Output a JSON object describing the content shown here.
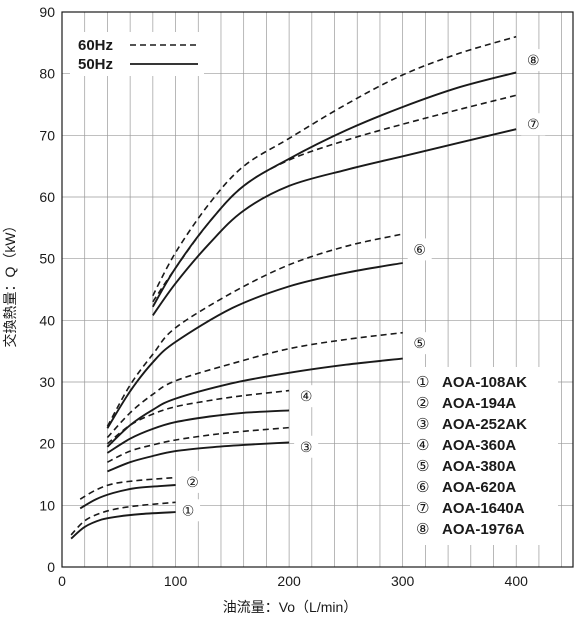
{
  "chart_data": {
    "type": "line",
    "title": "",
    "xlabel": "油流量：Vo（L/min）",
    "ylabel": "交換熱量：Q（kW）",
    "xlim": [
      0,
      450
    ],
    "ylim": [
      0,
      90
    ],
    "x_ticks": [
      "0",
      "100",
      "200",
      "300",
      "400"
    ],
    "y_ticks": [
      "0",
      "10",
      "20",
      "30",
      "40",
      "50",
      "60",
      "70",
      "80",
      "90"
    ],
    "grid": true,
    "legend_position": "top-left",
    "line_styles": [
      {
        "name": "60Hz",
        "style": "dashed"
      },
      {
        "name": "50Hz",
        "style": "solid"
      }
    ],
    "models": [
      {
        "marker": "①",
        "name": "AOA-108AK"
      },
      {
        "marker": "②",
        "name": "AOA-194A"
      },
      {
        "marker": "③",
        "name": "AOA-252AK"
      },
      {
        "marker": "④",
        "name": "AOA-360A"
      },
      {
        "marker": "⑤",
        "name": "AOA-380A"
      },
      {
        "marker": "⑥",
        "name": "AOA-620A"
      },
      {
        "marker": "⑦",
        "name": "AOA-1640A"
      },
      {
        "marker": "⑧",
        "name": "AOA-1976A"
      }
    ],
    "series": [
      {
        "model": "①",
        "freq": "50Hz",
        "x": [
          8,
          20,
          35,
          50,
          70,
          100
        ],
        "y": [
          4.6,
          6.5,
          7.7,
          8.2,
          8.6,
          8.9
        ]
      },
      {
        "model": "①",
        "freq": "60Hz",
        "x": [
          8,
          20,
          35,
          50,
          70,
          100
        ],
        "y": [
          5.2,
          7.5,
          8.8,
          9.5,
          10.0,
          10.5
        ]
      },
      {
        "model": "②",
        "freq": "50Hz",
        "x": [
          16,
          30,
          45,
          65,
          85,
          100
        ],
        "y": [
          9.5,
          11.0,
          12.0,
          12.8,
          13.1,
          13.3
        ]
      },
      {
        "model": "②",
        "freq": "60Hz",
        "x": [
          16,
          30,
          45,
          65,
          85,
          100
        ],
        "y": [
          11.0,
          12.5,
          13.5,
          14.0,
          14.3,
          14.5
        ]
      },
      {
        "model": "③",
        "freq": "50Hz",
        "x": [
          40,
          60,
          80,
          100,
          130,
          160,
          200
        ],
        "y": [
          15.5,
          17.0,
          18.0,
          18.8,
          19.4,
          19.8,
          20.2
        ]
      },
      {
        "model": "③",
        "freq": "60Hz",
        "x": [
          40,
          60,
          80,
          100,
          130,
          160,
          200
        ],
        "y": [
          17.0,
          18.8,
          19.8,
          20.6,
          21.4,
          22.0,
          22.6
        ]
      },
      {
        "model": "④",
        "freq": "50Hz",
        "x": [
          40,
          60,
          80,
          100,
          130,
          160,
          200
        ],
        "y": [
          18.5,
          20.8,
          22.4,
          23.5,
          24.4,
          25.0,
          25.4
        ]
      },
      {
        "model": "④",
        "freq": "60Hz",
        "x": [
          40,
          60,
          80,
          100,
          130,
          160,
          200
        ],
        "y": [
          20.0,
          23.0,
          24.8,
          26.0,
          27.0,
          27.8,
          28.6
        ]
      },
      {
        "model": "⑤",
        "freq": "50Hz",
        "x": [
          40,
          60,
          80,
          100,
          150,
          200,
          250,
          300
        ],
        "y": [
          19.5,
          23.0,
          25.5,
          27.3,
          29.8,
          31.5,
          32.8,
          33.8
        ]
      },
      {
        "model": "⑤",
        "freq": "60Hz",
        "x": [
          40,
          60,
          80,
          100,
          150,
          200,
          250,
          300
        ],
        "y": [
          21.0,
          25.0,
          28.0,
          30.2,
          33.0,
          35.4,
          36.9,
          38.0
        ]
      },
      {
        "model": "⑥",
        "freq": "50Hz",
        "x": [
          40,
          60,
          80,
          100,
          150,
          200,
          250,
          300
        ],
        "y": [
          22.5,
          28.5,
          33.2,
          36.5,
          42.0,
          45.5,
          47.7,
          49.3
        ]
      },
      {
        "model": "⑥",
        "freq": "60Hz",
        "x": [
          40,
          60,
          80,
          100,
          150,
          200,
          250,
          300
        ],
        "y": [
          22.8,
          29.5,
          34.5,
          38.8,
          44.5,
          49.0,
          52.0,
          54.0
        ]
      },
      {
        "model": "⑦",
        "freq": "50Hz",
        "x": [
          80,
          100,
          130,
          160,
          200,
          250,
          300,
          350,
          400
        ],
        "y": [
          40.8,
          46.0,
          52.5,
          57.8,
          61.8,
          64.4,
          66.6,
          68.8,
          71.0
        ]
      },
      {
        "model": "⑦",
        "freq": "60Hz",
        "x": [
          80,
          100,
          130,
          160,
          200,
          250,
          300,
          350,
          400
        ],
        "y": [
          43.0,
          48.5,
          56.0,
          61.8,
          66.0,
          69.2,
          71.8,
          74.2,
          76.5
        ]
      },
      {
        "model": "⑧",
        "freq": "50Hz",
        "x": [
          80,
          100,
          130,
          160,
          200,
          250,
          300,
          350,
          400
        ],
        "y": [
          42.2,
          48.5,
          56.0,
          61.8,
          66.2,
          70.8,
          74.6,
          77.8,
          80.2
        ]
      },
      {
        "model": "⑧",
        "freq": "60Hz",
        "x": [
          80,
          100,
          130,
          160,
          200,
          250,
          300,
          350,
          400
        ],
        "y": [
          44.0,
          51.0,
          59.0,
          65.0,
          69.5,
          75.0,
          79.8,
          83.3,
          86.0
        ]
      }
    ],
    "curve_markers": [
      {
        "marker": "①",
        "x": 111,
        "y": 9.2
      },
      {
        "marker": "②",
        "x": 115,
        "y": 13.8
      },
      {
        "marker": "③",
        "x": 215,
        "y": 19.5
      },
      {
        "marker": "④",
        "x": 215,
        "y": 27.7
      },
      {
        "marker": "⑤",
        "x": 315,
        "y": 36.3
      },
      {
        "marker": "⑥",
        "x": 315,
        "y": 51.5
      },
      {
        "marker": "⑦",
        "x": 415,
        "y": 71.8
      },
      {
        "marker": "⑧",
        "x": 415,
        "y": 82.2
      }
    ],
    "colors": {
      "line": "#1a1a1a",
      "grid": "#9a9a9a",
      "frame": "#1a1a1a"
    }
  }
}
